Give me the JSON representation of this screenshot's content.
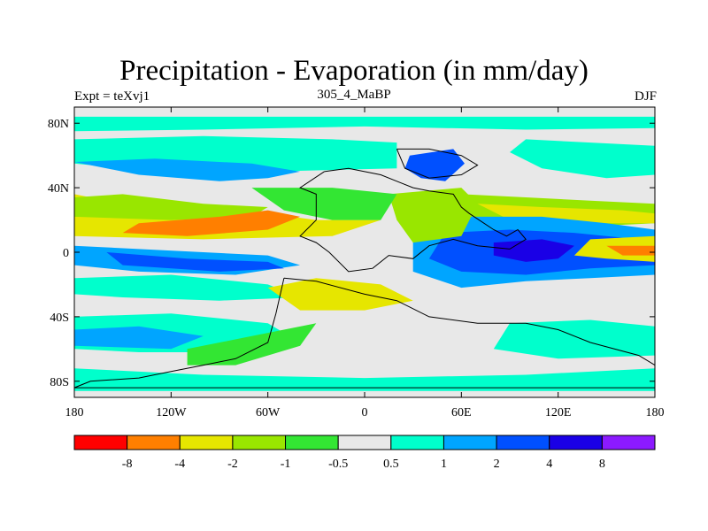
{
  "title": "Precipitation - Evaporation (in mm/day)",
  "left_label": "Expt = teXvj1",
  "center_label": "305_4_MaBP",
  "right_label": "DJF",
  "x_ticks": [
    {
      "value": -180,
      "label": "180"
    },
    {
      "value": -120,
      "label": "120W"
    },
    {
      "value": -60,
      "label": "60W"
    },
    {
      "value": 0,
      "label": "0"
    },
    {
      "value": 60,
      "label": "60E"
    },
    {
      "value": 120,
      "label": "120E"
    },
    {
      "value": 180,
      "label": "180"
    }
  ],
  "y_ticks": [
    {
      "value": 80,
      "label": "80N"
    },
    {
      "value": 40,
      "label": "40N"
    },
    {
      "value": 0,
      "label": "0"
    },
    {
      "value": -40,
      "label": "40S"
    },
    {
      "value": -80,
      "label": "80S"
    }
  ],
  "extent": {
    "lon": [
      -180,
      180
    ],
    "lat": [
      -90,
      90
    ]
  },
  "colorbar": {
    "colors": [
      "#ff0000",
      "#ff7f00",
      "#e6e600",
      "#99e600",
      "#33e633",
      "#e8e8e8",
      "#00ffcc",
      "#00a5ff",
      "#0050ff",
      "#1a00e6",
      "#8c1aff"
    ],
    "labels": [
      "-8",
      "-4",
      "-2",
      "-1",
      "-0.5",
      "0.5",
      "1",
      "2",
      "4",
      "8"
    ]
  },
  "map_colors": {
    "ocean_base": "#e8e8e8",
    "red": "#ff0000",
    "orange": "#ff7f00",
    "yellow": "#e6e600",
    "lime": "#99e600",
    "green": "#33e633",
    "cyan": "#00ffcc",
    "lightblue": "#00a5ff",
    "blue": "#0050ff",
    "darkblue": "#1a00e6"
  }
}
